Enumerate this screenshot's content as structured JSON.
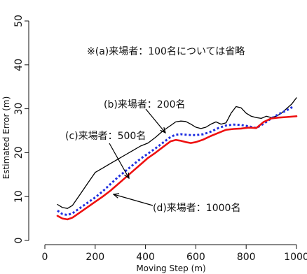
{
  "chart_data": {
    "type": "line",
    "xlabel": "Moving Step (m)",
    "ylabel": "Estimated Error (m)",
    "xlim": [
      0,
      1000
    ],
    "ylim": [
      0,
      50
    ],
    "xticks": [
      0,
      200,
      400,
      600,
      800,
      1000
    ],
    "yticks": [
      0,
      10,
      20,
      30,
      40,
      50
    ],
    "grid": false,
    "legend": "none",
    "note": "※(a)来場者：100名については省略",
    "annotations": [
      {
        "text": "(b)来場者：200名",
        "series": 0
      },
      {
        "text": "(c)来場者：500名",
        "series": 1
      },
      {
        "text": "(d)来場者：1000名",
        "series": 2
      }
    ],
    "series": [
      {
        "color": "#000000",
        "dash": "solid",
        "x": [
          50,
          70,
          90,
          110,
          140,
          170,
          200,
          230,
          260,
          290,
          320,
          350,
          380,
          410,
          440,
          470,
          500,
          520,
          540,
          560,
          580,
          600,
          620,
          640,
          660,
          680,
          700,
          720,
          740,
          760,
          780,
          800,
          820,
          840,
          860,
          880,
          900,
          920,
          940,
          960,
          980,
          1000
        ],
        "y": [
          8.2,
          7.5,
          7.3,
          8.0,
          10.5,
          13.0,
          15.5,
          16.5,
          17.5,
          18.5,
          19.5,
          20.5,
          21.5,
          22.2,
          23.5,
          25.0,
          26.2,
          27.0,
          27.2,
          27.1,
          26.5,
          25.8,
          25.5,
          25.8,
          26.5,
          27.0,
          26.5,
          26.8,
          29.0,
          30.5,
          30.2,
          29.0,
          28.3,
          28.0,
          27.8,
          28.3,
          28.0,
          28.3,
          29.0,
          30.0,
          31.0,
          32.5
        ]
      },
      {
        "color": "#1f2fe0",
        "dash": "dotted",
        "x": [
          50,
          70,
          90,
          110,
          140,
          170,
          200,
          230,
          260,
          290,
          320,
          350,
          380,
          410,
          440,
          470,
          500,
          520,
          540,
          560,
          580,
          600,
          630,
          660,
          690,
          720,
          750,
          780,
          810,
          840,
          870,
          900,
          930,
          960,
          990
        ],
        "y": [
          6.8,
          6.0,
          5.8,
          6.2,
          7.4,
          8.6,
          9.8,
          11.2,
          12.8,
          14.4,
          15.8,
          17.2,
          18.6,
          19.8,
          21.0,
          22.3,
          23.6,
          24.1,
          24.2,
          24.1,
          24.0,
          24.0,
          24.2,
          24.8,
          25.6,
          26.2,
          26.4,
          26.3,
          26.0,
          25.6,
          26.6,
          27.8,
          28.8,
          29.6,
          30.6
        ]
      },
      {
        "color": "#ee1111",
        "dash": "solid",
        "x": [
          50,
          70,
          90,
          110,
          140,
          170,
          200,
          230,
          260,
          290,
          320,
          350,
          380,
          410,
          440,
          470,
          500,
          520,
          540,
          560,
          580,
          600,
          630,
          660,
          690,
          720,
          750,
          780,
          810,
          840,
          870,
          900,
          930,
          960,
          1000
        ],
        "y": [
          5.6,
          5.0,
          4.8,
          5.2,
          6.4,
          7.6,
          8.8,
          10.0,
          11.3,
          12.8,
          14.3,
          15.8,
          17.3,
          18.8,
          20.0,
          21.3,
          22.6,
          22.9,
          22.7,
          22.4,
          22.2,
          22.4,
          23.0,
          23.8,
          24.5,
          25.2,
          25.4,
          25.5,
          25.7,
          25.6,
          27.0,
          27.8,
          28.0,
          28.1,
          28.3
        ]
      }
    ]
  }
}
